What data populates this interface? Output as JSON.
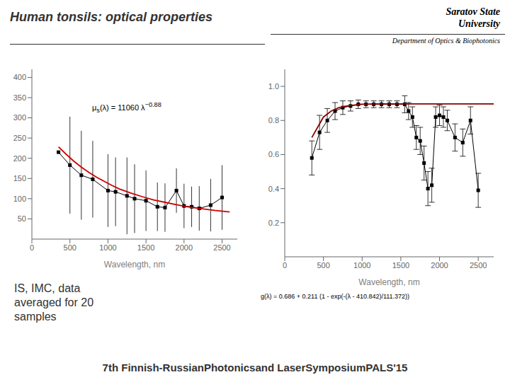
{
  "title": "Human tonsils: optical properties",
  "annotations": [
    "Saratov State\nUniversity",
    "Department of Optics & Biophotonics",
    "IS, IMC, data\naveraged for 20\nsamples",
    "7th Finnish-RussianPhotonicsand LaserSymposiumPALS'15"
  ],
  "chart_data": [
    {
      "type": "line",
      "xlabel": "Wavelength, nm",
      "annotations": [
        "μs(λ) = 11060 λ−0.88"
      ],
      "xlim": [
        0,
        2700
      ],
      "ylim": [
        0,
        420
      ],
      "xticks": [
        0,
        500,
        1000,
        1500,
        2000,
        2500
      ],
      "yticks": [
        50,
        100,
        150,
        200,
        250,
        300,
        350,
        400
      ],
      "grid": false,
      "series": [
        {
          "color": "#000000",
          "marker": "square",
          "line_style": "solid",
          "x": [
            350,
            500,
            650,
            800,
            1000,
            1100,
            1250,
            1350,
            1500,
            1650,
            1750,
            1900,
            2000,
            2100,
            2200,
            2350,
            2500
          ],
          "values": [
            215,
            183,
            158,
            148,
            120,
            117,
            107,
            100,
            95,
            80,
            78,
            120,
            82,
            80,
            76,
            84,
            103
          ],
          "yerr": [
            0,
            120,
            110,
            95,
            90,
            85,
            95,
            85,
            75,
            60,
            60,
            55,
            55,
            50,
            55,
            65,
            80
          ]
        },
        {
          "color": "#cc0000",
          "marker": "none",
          "line_style": "solid",
          "x": [
            350,
            450,
            550,
            650,
            750,
            850,
            950,
            1050,
            1150,
            1300,
            1450,
            1600,
            1750,
            1900,
            2050,
            2200,
            2400,
            2600
          ],
          "values": [
            228,
            210,
            193,
            178,
            165,
            153,
            143,
            133,
            124,
            114,
            105,
            97,
            91,
            85,
            80,
            76,
            71,
            67
          ]
        }
      ]
    },
    {
      "type": "line",
      "xlabel": "Wavelength, nm",
      "annotations": [
        "g(λ) = 0.686 + 0.211 (1 - exp(-(λ - 410.842)/111.372))"
      ],
      "xlim": [
        0,
        2700
      ],
      "ylim": [
        0.0,
        1.1
      ],
      "xticks": [
        0,
        500,
        1000,
        1500,
        2000,
        2500
      ],
      "yticks": [
        0.2,
        0.4,
        0.6,
        0.8,
        {
          "value": 1,
          "label": "1.0"
        }
      ],
      "grid": false,
      "series": [
        {
          "color": "#000000",
          "marker": "square",
          "line_style": "solid",
          "x": [
            350,
            450,
            550,
            650,
            750,
            850,
            950,
            1050,
            1150,
            1250,
            1350,
            1450,
            1550,
            1600,
            1650,
            1700,
            1750,
            1800,
            1850,
            1900,
            1950,
            2000,
            2050,
            2100,
            2200,
            2300,
            2400,
            2500
          ],
          "values": [
            0.58,
            0.73,
            0.8,
            0.855,
            0.875,
            0.885,
            0.895,
            0.895,
            0.895,
            0.895,
            0.895,
            0.895,
            0.895,
            0.855,
            0.82,
            0.7,
            0.68,
            0.55,
            0.4,
            0.42,
            0.82,
            0.83,
            0.82,
            0.8,
            0.7,
            0.67,
            0.8,
            0.39
          ],
          "yerr": [
            0.1,
            0.1,
            0.07,
            0.05,
            0.04,
            0.03,
            0.025,
            0.02,
            0.02,
            0.02,
            0.02,
            0.02,
            0.05,
            0.05,
            0.06,
            0.07,
            0.08,
            0.1,
            0.1,
            0.1,
            0.06,
            0.06,
            0.06,
            0.06,
            0.08,
            0.08,
            0.08,
            0.1
          ]
        },
        {
          "color": "#880000",
          "marker": "none",
          "line_style": "solid",
          "x": [
            350,
            500,
            600,
            700,
            800,
            1000,
            1200,
            1400,
            1600,
            1800,
            2000,
            2200,
            2500,
            2700
          ],
          "values": [
            0.7,
            0.82,
            0.855,
            0.875,
            0.885,
            0.895,
            0.897,
            0.897,
            0.897,
            0.897,
            0.897,
            0.897,
            0.897,
            0.897
          ]
        }
      ]
    }
  ]
}
